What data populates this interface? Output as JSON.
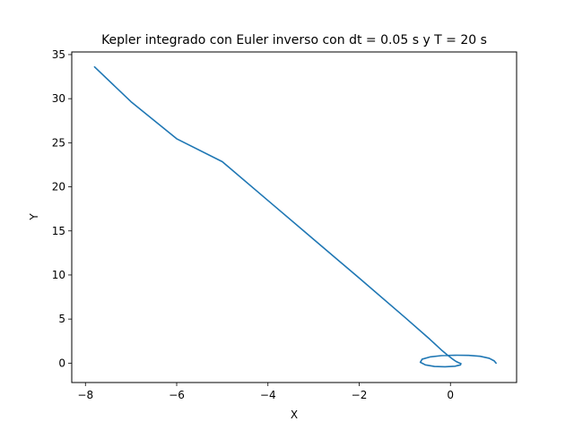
{
  "chart_data": {
    "type": "line",
    "title": "Kepler integrado con Euler inverso con dt = 0.05 s y T = 20 s",
    "xlabel": "X",
    "ylabel": "Y",
    "xlim": [
      -8.3,
      1.45
    ],
    "ylim": [
      -2.2,
      35.3
    ],
    "xticks": [
      -8,
      -6,
      -4,
      -2,
      0
    ],
    "xtick_labels": [
      "−8",
      "−6",
      "−4",
      "−2",
      "0"
    ],
    "yticks": [
      0,
      5,
      10,
      15,
      20,
      25,
      30,
      35
    ],
    "ytick_labels": [
      "0",
      "5",
      "10",
      "15",
      "20",
      "25",
      "30",
      "35"
    ],
    "grid": false,
    "series": [
      {
        "color": "#1f77b4",
        "x": [
          1.0,
          0.96,
          0.85,
          0.65,
          0.4,
          0.1,
          -0.2,
          -0.45,
          -0.62,
          -0.66,
          -0.55,
          -0.35,
          -0.12,
          0.1,
          0.22,
          0.23,
          0.18,
          0.12,
          0.05,
          -0.05,
          -0.2,
          -0.45,
          -1.0,
          -2.0,
          -3.0,
          -4.0,
          -5.0,
          -6.0,
          -7.0,
          -7.8
        ],
        "y": [
          0.0,
          0.25,
          0.55,
          0.78,
          0.88,
          0.9,
          0.85,
          0.7,
          0.45,
          0.1,
          -0.2,
          -0.38,
          -0.42,
          -0.35,
          -0.2,
          -0.05,
          0.05,
          0.2,
          0.45,
          0.85,
          1.5,
          2.7,
          5.2,
          9.65,
          14.05,
          18.45,
          22.85,
          25.45,
          29.65,
          33.6
        ]
      }
    ]
  }
}
